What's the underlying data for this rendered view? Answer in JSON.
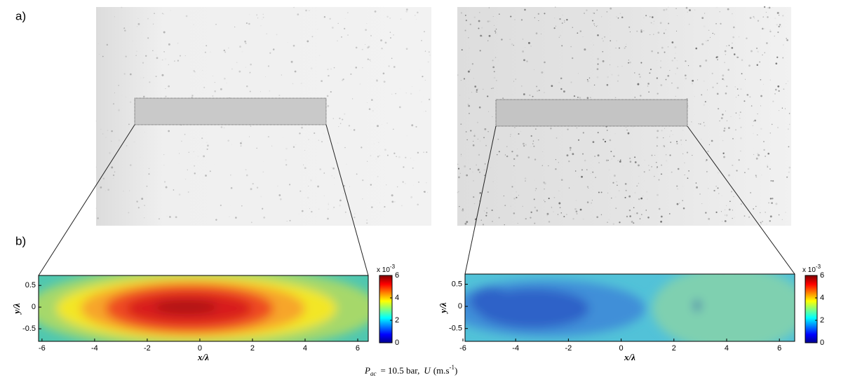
{
  "labels": {
    "a": "a)",
    "b": "b)"
  },
  "panels": [
    {
      "xlabel": "x/λ",
      "ylabel": "y/λ",
      "xlim": [
        -6.13,
        6.4
      ],
      "ylim": [
        -0.79,
        0.73
      ],
      "xticks": [
        -6,
        -4,
        -2,
        0,
        2,
        4,
        6
      ],
      "yticks": [
        -0.5,
        0,
        0.5
      ],
      "colorbar": {
        "lim": [
          0,
          6
        ],
        "ticks": [
          0,
          2,
          4,
          6
        ],
        "multiplier": "x 10",
        "exponent": "-3"
      }
    },
    {
      "xlabel": "x/λ",
      "ylabel": "y/λ",
      "xlim": [
        -5.92,
        6.58
      ],
      "ylim": [
        -0.79,
        0.73
      ],
      "xticks": [
        -6,
        -4,
        -2,
        0,
        2,
        4,
        6
      ],
      "yticks": [
        -0.5,
        0,
        0.5
      ],
      "colorbar": {
        "lim": [
          0,
          6
        ],
        "ticks": [
          0,
          2,
          4,
          6
        ],
        "multiplier": "x 10",
        "exponent": "-3"
      }
    }
  ],
  "caption": {
    "symbol": "P",
    "subscript": "ac",
    "text": "= 10.5 bar,",
    "u_symbol": "U",
    "unit": "(m.s",
    "unit_exponent": "-1",
    "close": ")"
  }
}
